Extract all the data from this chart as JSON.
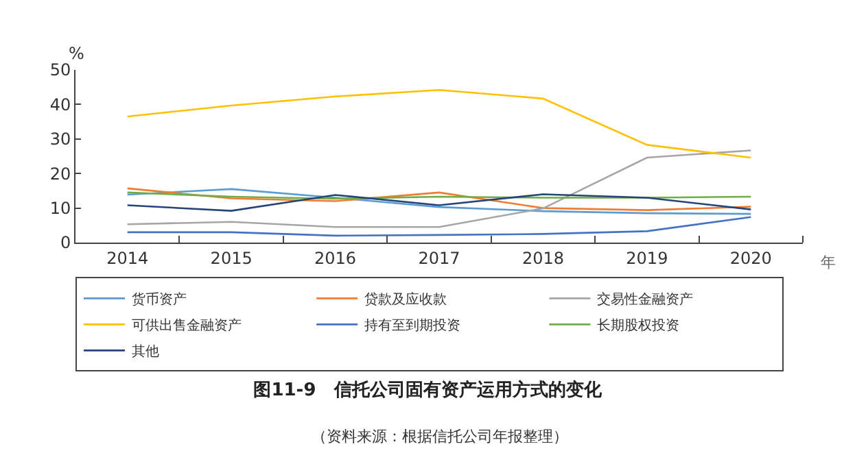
{
  "chart_data": {
    "type": "line",
    "title": "图11-9　信托公司固有资产运用方式的变化",
    "xlabel": "年",
    "ylabel": "%",
    "categories": [
      "2014",
      "2015",
      "2016",
      "2017",
      "2018",
      "2019",
      "2020"
    ],
    "ylim": [
      0,
      50
    ],
    "yticks": [
      0,
      10,
      20,
      30,
      40,
      50
    ],
    "legend": "bottom",
    "marker": "none",
    "line_style": "solid",
    "annotations": [
      "（资料来源：根据信托公司年报整理）"
    ],
    "series": [
      {
        "name": "货币资产",
        "color": "#5b9bd5",
        "values": [
          13.9,
          15.5,
          13,
          10.3,
          9.1,
          8.5,
          8.3
        ]
      },
      {
        "name": "贷款及应收款",
        "color": "#ed7d31",
        "values": [
          15.7,
          12.8,
          12,
          14.5,
          10,
          9.4,
          10.4
        ]
      },
      {
        "name": "交易性金融资产",
        "color": "#a5a5a5",
        "values": [
          5.3,
          6,
          4.5,
          4.5,
          9.9,
          24.6,
          26.7
        ]
      },
      {
        "name": "可供出售金融资产",
        "color": "#ffc000",
        "values": [
          36.5,
          39.7,
          42.3,
          44.2,
          41.7,
          28.3,
          24.6
        ]
      },
      {
        "name": "持有至到期投资",
        "color": "#4472c4",
        "values": [
          3,
          3,
          2,
          2.2,
          2.5,
          3.3,
          7.4
        ]
      },
      {
        "name": "长期股权投资",
        "color": "#70ad47",
        "values": [
          14.5,
          13.3,
          12.7,
          13.3,
          13,
          13,
          13.3
        ]
      },
      {
        "name": "其他",
        "color": "#264478",
        "values": [
          10.8,
          9.2,
          13.8,
          10.8,
          14,
          13,
          9.6
        ]
      }
    ]
  }
}
